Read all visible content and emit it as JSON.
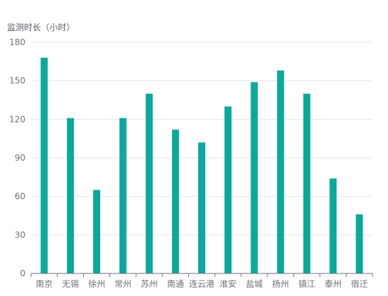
{
  "chart_data": {
    "type": "bar",
    "ylabel": "监测时长（小时）",
    "ylim": [
      0,
      180
    ],
    "yticks": [
      0,
      30,
      60,
      90,
      120,
      150,
      180
    ],
    "grid": true,
    "categories": [
      "南京",
      "无锡",
      "徐州",
      "常州",
      "苏州",
      "南通",
      "连云港",
      "淮安",
      "盐城",
      "扬州",
      "镇江",
      "泰州",
      "宿迁"
    ],
    "values": [
      168,
      121,
      65,
      121,
      140,
      112,
      102,
      130,
      149,
      158,
      140,
      74,
      46
    ],
    "bar_color": "#0ea89a"
  }
}
